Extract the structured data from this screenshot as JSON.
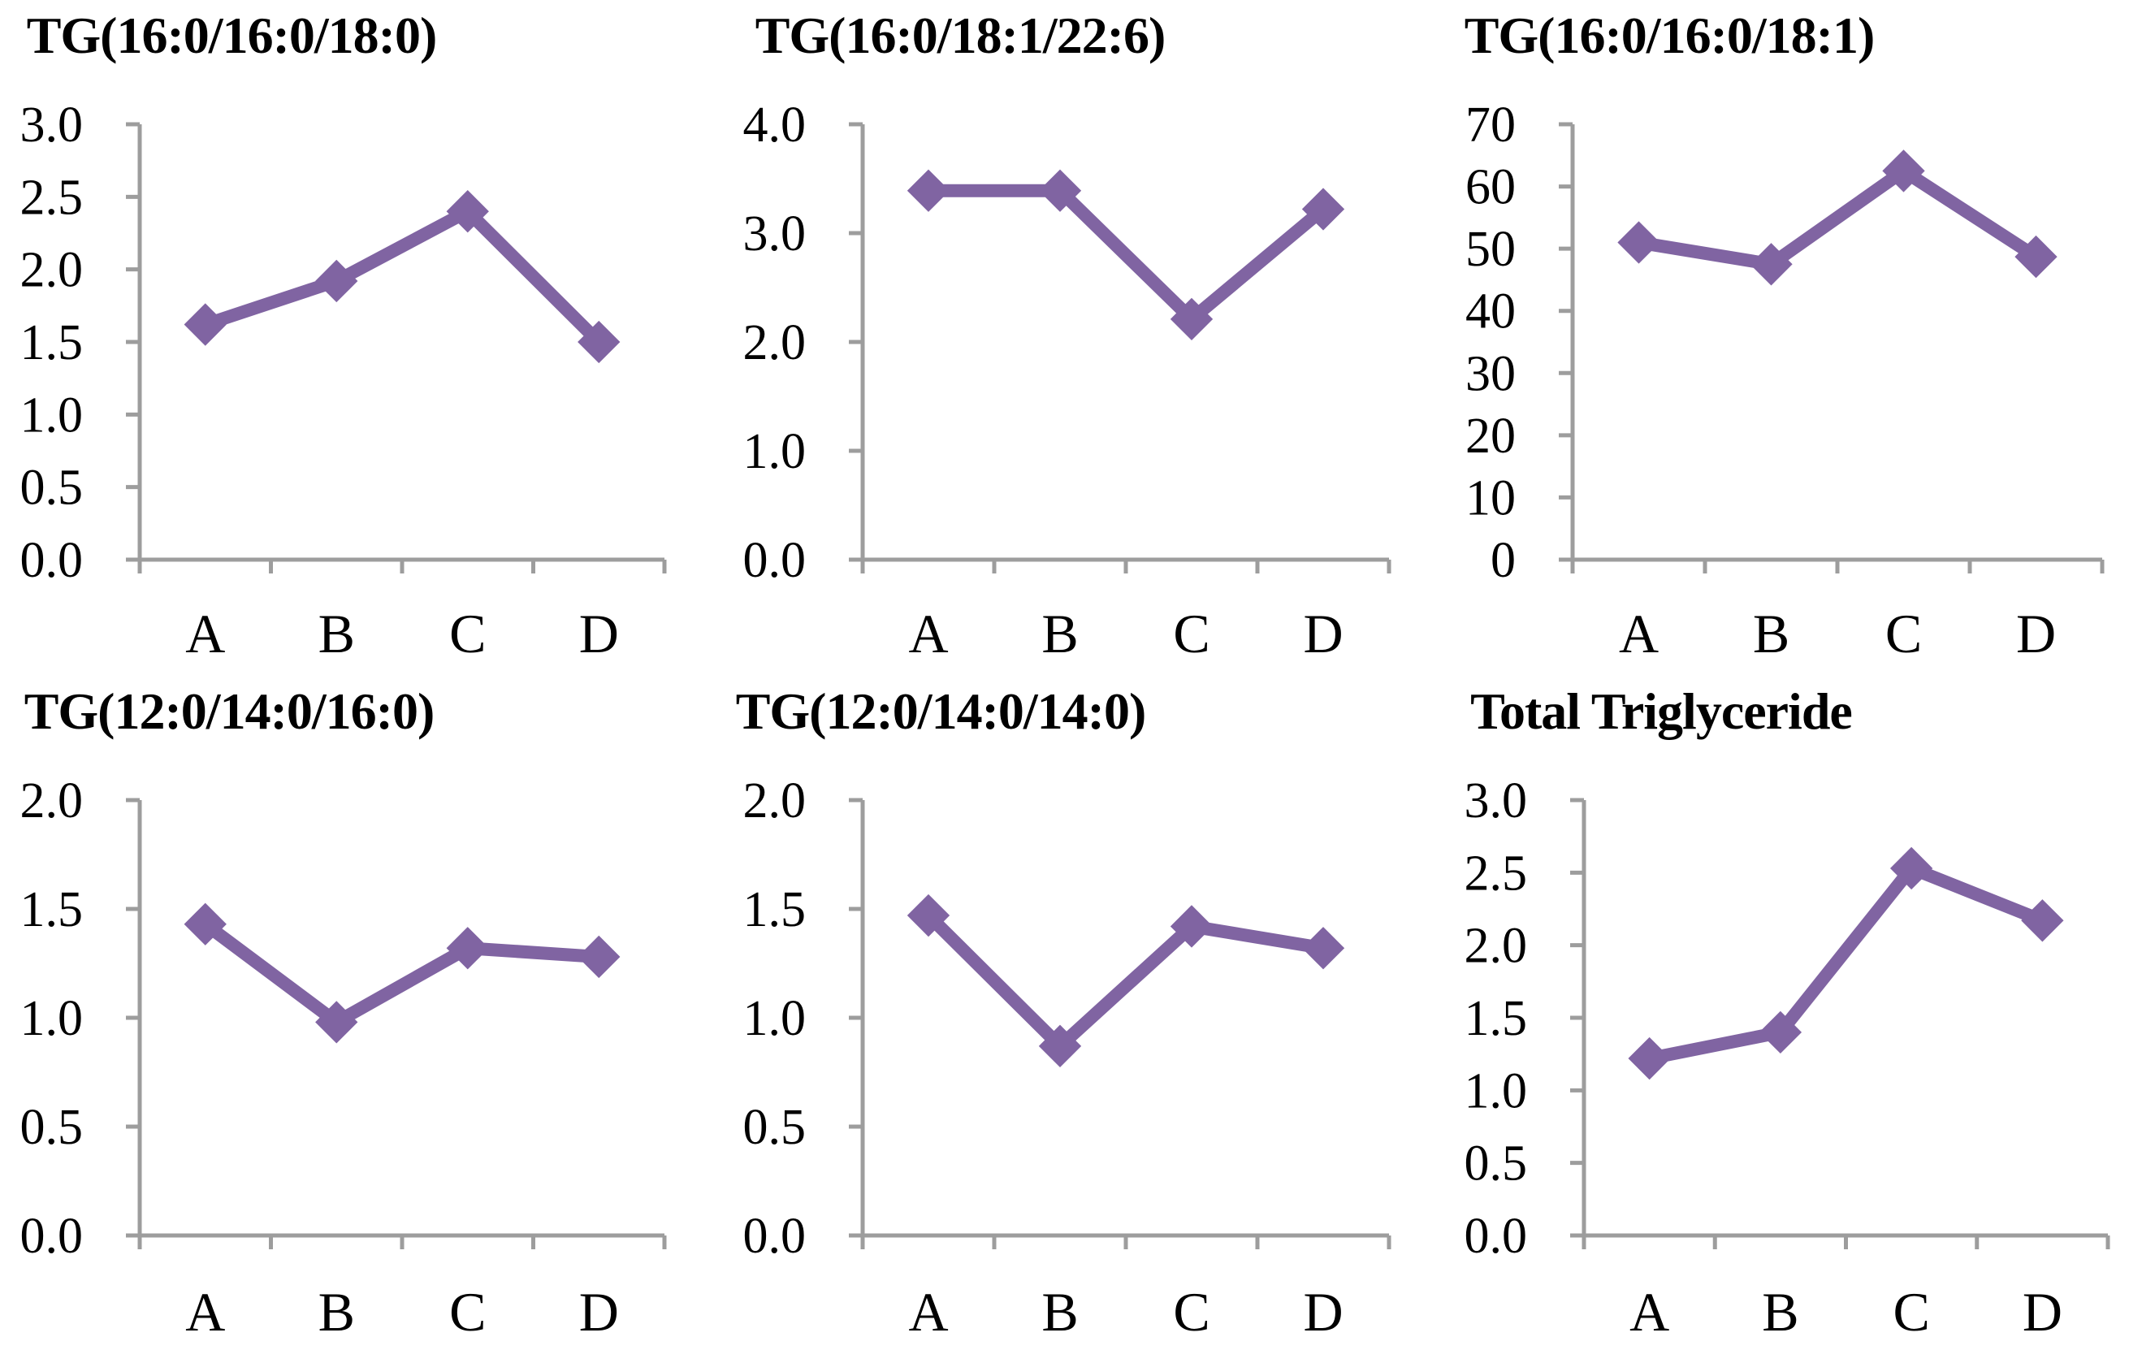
{
  "page": {
    "background": "#ffffff"
  },
  "colors": {
    "series": "#8064A2",
    "axis": "#9D9D9D",
    "text": "#000000"
  },
  "chart_data": [
    {
      "type": "line",
      "title": "TG(16:0/16:0/18:0)",
      "categories": [
        "A",
        "B",
        "C",
        "D"
      ],
      "values": [
        1.62,
        1.92,
        2.4,
        1.5
      ],
      "ylim": [
        0,
        3.0
      ],
      "ytick_step": 0.5,
      "ytick_decimals": 1,
      "ytick_labels": [
        "0.0",
        "0.5",
        "1.0",
        "1.5",
        "2.0",
        "2.5",
        "3.0"
      ],
      "grid": false,
      "legend": "none"
    },
    {
      "type": "line",
      "title": "TG(16:0/18:1/22:6)",
      "categories": [
        "A",
        "B",
        "C",
        "D"
      ],
      "values": [
        3.39,
        3.39,
        2.21,
        3.22
      ],
      "ylim": [
        0,
        4.0
      ],
      "ytick_step": 1.0,
      "ytick_decimals": 1,
      "ytick_labels": [
        "0.0",
        "1.0",
        "2.0",
        "3.0",
        "4.0"
      ],
      "grid": false,
      "legend": "none"
    },
    {
      "type": "line",
      "title": "TG(16:0/16:0/18:1)",
      "categories": [
        "A",
        "B",
        "C",
        "D"
      ],
      "values": [
        51,
        47.5,
        62.5,
        48.7
      ],
      "ylim": [
        0,
        70
      ],
      "ytick_step": 10,
      "ytick_decimals": 0,
      "ytick_labels": [
        "0",
        "10",
        "20",
        "30",
        "40",
        "50",
        "60",
        "70"
      ],
      "grid": false,
      "legend": "none"
    },
    {
      "type": "line",
      "title": "TG(12:0/14:0/16:0)",
      "categories": [
        "A",
        "B",
        "C",
        "D"
      ],
      "values": [
        1.43,
        0.98,
        1.32,
        1.28
      ],
      "ylim": [
        0,
        2.0
      ],
      "ytick_step": 0.5,
      "ytick_decimals": 1,
      "ytick_labels": [
        "0.0",
        "0.5",
        "1.0",
        "1.5",
        "2.0"
      ],
      "grid": false,
      "legend": "none"
    },
    {
      "type": "line",
      "title": "TG(12:0/14:0/14:0)",
      "categories": [
        "A",
        "B",
        "C",
        "D"
      ],
      "values": [
        1.47,
        0.87,
        1.42,
        1.32
      ],
      "ylim": [
        0,
        2.0
      ],
      "ytick_step": 0.5,
      "ytick_decimals": 1,
      "ytick_labels": [
        "0.0",
        "0.5",
        "1.0",
        "1.5",
        "2.0"
      ],
      "grid": false,
      "legend": "none"
    },
    {
      "type": "line",
      "title": "Total Triglyceride",
      "categories": [
        "A",
        "B",
        "C",
        "D"
      ],
      "values": [
        1.22,
        1.4,
        2.53,
        2.17
      ],
      "ylim": [
        0,
        3.0
      ],
      "ytick_step": 0.5,
      "ytick_decimals": 1,
      "ytick_labels": [
        "0.0",
        "0.5",
        "1.0",
        "1.5",
        "2.0",
        "2.5",
        "3.0"
      ],
      "grid": false,
      "legend": "none"
    }
  ]
}
